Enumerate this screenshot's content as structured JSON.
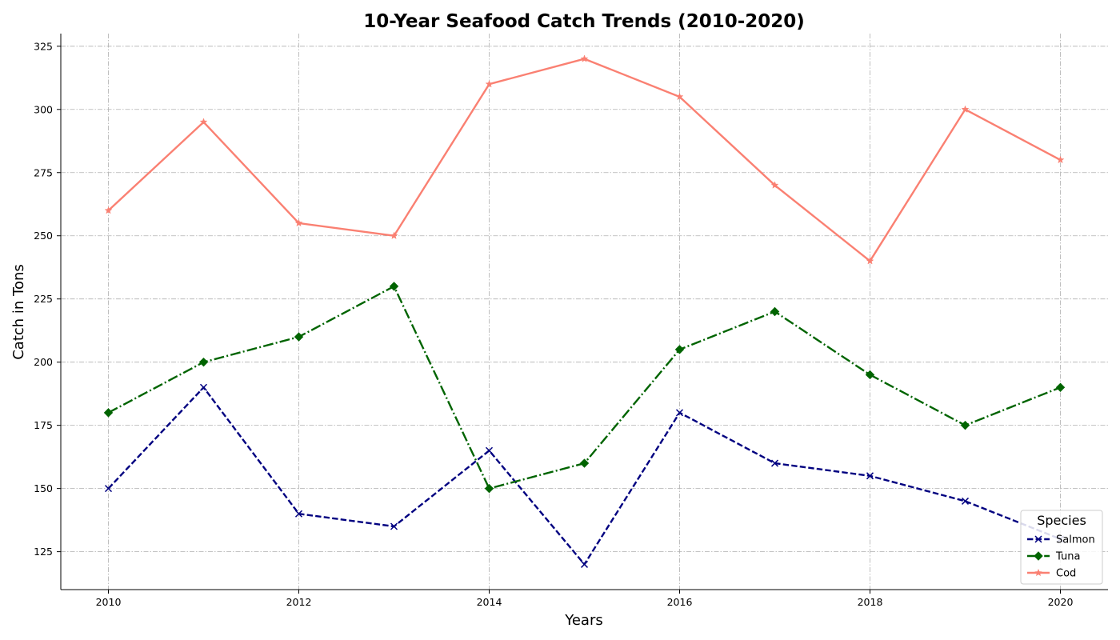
{
  "chart_data": {
    "type": "line",
    "title": "10-Year Seafood Catch Trends (2010-2020)",
    "xlabel": "Years",
    "ylabel": "Catch in Tons",
    "x": [
      2010,
      2011,
      2012,
      2013,
      2014,
      2015,
      2016,
      2017,
      2018,
      2019,
      2020
    ],
    "xticks": [
      "2010",
      "2012",
      "2014",
      "2016",
      "2018",
      "2020"
    ],
    "yticks": [
      "125",
      "150",
      "175",
      "200",
      "225",
      "250",
      "275",
      "300",
      "325"
    ],
    "xlim": [
      2009.5,
      2020.5
    ],
    "ylim": [
      110,
      330
    ],
    "grid": true,
    "legend": {
      "title": "Species",
      "placement": "bottom-right"
    },
    "series": [
      {
        "name": "Salmon",
        "color": "#000080",
        "marker": "x",
        "linestyle": "dashed",
        "values": [
          150,
          190,
          140,
          135,
          165,
          120,
          180,
          160,
          155,
          145,
          130
        ]
      },
      {
        "name": "Tuna",
        "color": "#006400",
        "marker": "diamond",
        "linestyle": "dashdot",
        "values": [
          180,
          200,
          210,
          230,
          150,
          160,
          205,
          220,
          195,
          175,
          190
        ]
      },
      {
        "name": "Cod",
        "color": "#fa8072",
        "marker": "star",
        "linestyle": "solid",
        "values": [
          260,
          295,
          255,
          250,
          310,
          320,
          305,
          270,
          240,
          300,
          280
        ]
      }
    ]
  }
}
